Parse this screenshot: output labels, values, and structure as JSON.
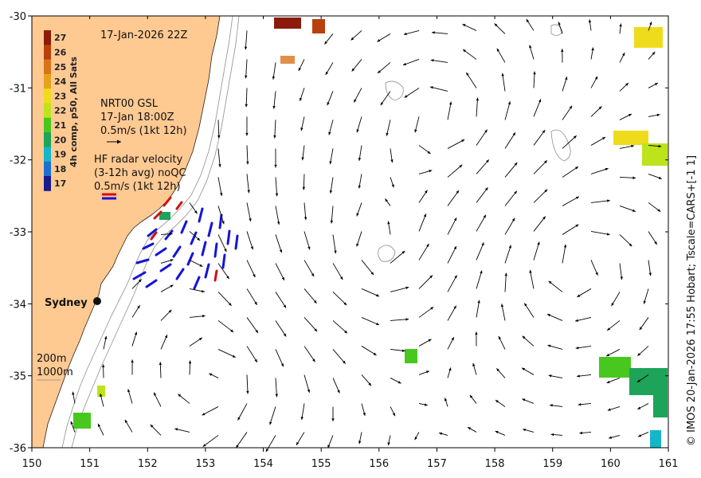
{
  "map": {
    "date_label": "17-Jan-2026 22Z",
    "city": "Sydney",
    "credit": "© IMOS 20-Jan-2026 17:55 Hobart; Tscale=CARS+[-1 1]"
  },
  "colorbar": {
    "title": "4h comp, p50, All Sats",
    "levels": [
      "27",
      "26",
      "25",
      "24",
      "23",
      "22",
      "21",
      "20",
      "19",
      "18",
      "17"
    ],
    "colors": [
      "#8b1a0a",
      "#b8400c",
      "#d9731a",
      "#e6a21f",
      "#eedc1c",
      "#bde31a",
      "#48c81e",
      "#1ea35b",
      "#13b7c8",
      "#1f6fd1",
      "#1a1a8c"
    ]
  },
  "legend": {
    "gsl_title": "NRT00 GSL",
    "gsl_date": "17-Jan 18:00Z",
    "gsl_scale": "0.5m/s (1kt 12h)",
    "hf_title": "HF radar velocity",
    "hf_avg": "(3-12h avg) noQC",
    "hf_scale": "0.5m/s (1kt 12h)",
    "contour_200": "200m",
    "contour_1000": "1000m"
  },
  "axes": {
    "x_ticks": [
      "150",
      "151",
      "152",
      "153",
      "154",
      "155",
      "156",
      "157",
      "158",
      "159",
      "160",
      "161"
    ],
    "y_ticks": [
      "-30",
      "-31",
      "-32",
      "-33",
      "-34",
      "-35",
      "-36"
    ],
    "xlim": [
      150,
      161
    ],
    "ylim": [
      -36,
      -30
    ]
  },
  "colors": {
    "land": "#ffc992",
    "arrow": "#000000",
    "hf_blue": "#1414d6",
    "hf_red": "#d01010",
    "contour": "#9a9a9a"
  }
}
